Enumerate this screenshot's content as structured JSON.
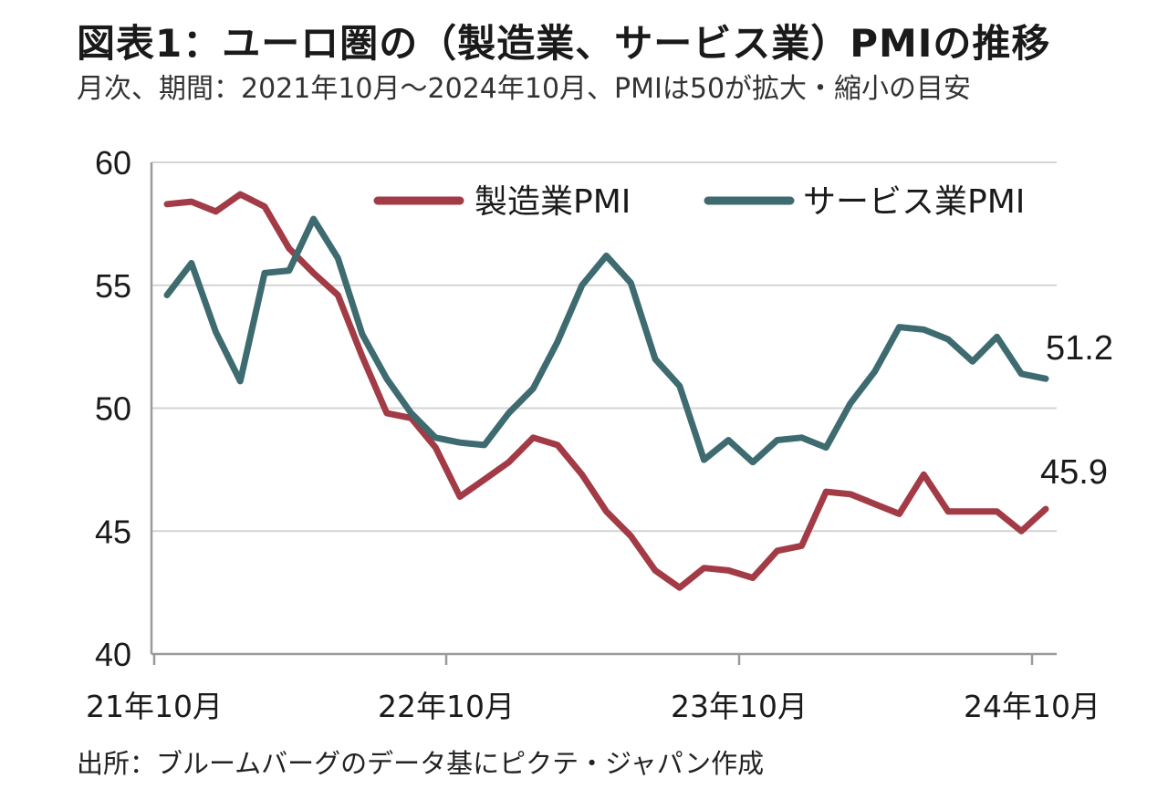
{
  "title": "図表1：ユーロ圏の（製造業、サービス業）PMIの推移",
  "subtitle": "月次、期間：2021年10月～2024年10月、PMIは50が拡大・縮小の目安",
  "source": "出所：ブルームバーグのデータ基にピクテ・ジャパン作成",
  "chart_data": {
    "type": "line",
    "x": [
      "2021-10",
      "2021-11",
      "2021-12",
      "2022-01",
      "2022-02",
      "2022-03",
      "2022-04",
      "2022-05",
      "2022-06",
      "2022-07",
      "2022-08",
      "2022-09",
      "2022-10",
      "2022-11",
      "2022-12",
      "2023-01",
      "2023-02",
      "2023-03",
      "2023-04",
      "2023-05",
      "2023-06",
      "2023-07",
      "2023-08",
      "2023-09",
      "2023-10",
      "2023-11",
      "2023-12",
      "2024-01",
      "2024-02",
      "2024-03",
      "2024-04",
      "2024-05",
      "2024-06",
      "2024-07",
      "2024-08",
      "2024-09",
      "2024-10"
    ],
    "x_ticks": [
      "21年10月",
      "22年10月",
      "23年10月",
      "24年10月"
    ],
    "ylim": [
      40,
      60
    ],
    "y_ticks": [
      40,
      45,
      50,
      55,
      60
    ],
    "grid": true,
    "legend": "top-right",
    "series": [
      {
        "name": "製造業PMI",
        "color": "#a23b46",
        "values": [
          58.3,
          58.4,
          58.0,
          58.7,
          58.2,
          56.5,
          55.5,
          54.6,
          52.1,
          49.8,
          49.6,
          48.4,
          46.4,
          47.1,
          47.8,
          48.8,
          48.5,
          47.3,
          45.8,
          44.8,
          43.4,
          42.7,
          43.5,
          43.4,
          43.1,
          44.2,
          44.4,
          46.6,
          46.5,
          46.1,
          45.7,
          47.3,
          45.8,
          45.8,
          45.8,
          45.0,
          45.9
        ],
        "end_label": "45.9"
      },
      {
        "name": "サービス業PMI",
        "color": "#3e6b70",
        "values": [
          54.6,
          55.9,
          53.1,
          51.1,
          55.5,
          55.6,
          57.7,
          56.1,
          53.0,
          51.2,
          49.8,
          48.8,
          48.6,
          48.5,
          49.8,
          50.8,
          52.7,
          55.0,
          56.2,
          55.1,
          52.0,
          50.9,
          47.9,
          48.7,
          47.8,
          48.7,
          48.8,
          48.4,
          50.2,
          51.5,
          53.3,
          53.2,
          52.8,
          51.9,
          52.9,
          51.4,
          51.2
        ],
        "end_label": "51.2"
      }
    ]
  }
}
